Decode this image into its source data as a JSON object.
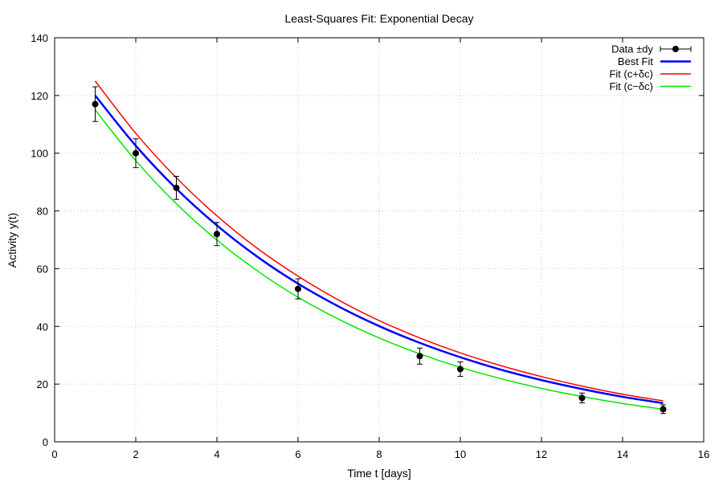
{
  "chart_data": {
    "type": "scatter",
    "title": "Least-Squares Fit: Exponential Decay",
    "xlabel": "Time t [days]",
    "ylabel": "Activity y(t)",
    "xlim": [
      0,
      16
    ],
    "ylim": [
      0,
      140
    ],
    "xticks": [
      0,
      2,
      4,
      6,
      8,
      10,
      12,
      14,
      16
    ],
    "yticks": [
      0,
      20,
      40,
      60,
      80,
      100,
      120,
      140
    ],
    "grid": true,
    "legend_position": "top-right",
    "data_points": {
      "name": "Data ±dy",
      "color": "#000000",
      "x": [
        1,
        2,
        3,
        4,
        6,
        9,
        10,
        13,
        15
      ],
      "y": [
        117,
        100,
        88,
        72,
        53,
        29.7,
        25.2,
        15.2,
        11.3
      ],
      "dy": [
        6,
        5,
        4,
        4,
        3.5,
        2.8,
        2.5,
        1.7,
        1.5
      ]
    },
    "series": [
      {
        "name": "Best Fit",
        "color": "#0000ff",
        "x": [
          1,
          2,
          3,
          4,
          5,
          6,
          7,
          8,
          9,
          10,
          11,
          12,
          13,
          14,
          15
        ],
        "y": [
          120.0,
          102.6,
          87.7,
          75.0,
          64.1,
          54.8,
          46.9,
          40.1,
          34.3,
          29.3,
          25.0,
          21.4,
          18.3,
          15.6,
          13.4
        ]
      },
      {
        "name": "Fit (c+δc)",
        "color": "#ff0000",
        "x": [
          1,
          2,
          3,
          4,
          5,
          6,
          7,
          8,
          9,
          10,
          11,
          12,
          13,
          14,
          15
        ],
        "y": [
          125.0,
          106.9,
          91.5,
          78.3,
          67.0,
          57.4,
          49.1,
          42.0,
          36.0,
          30.8,
          26.4,
          22.6,
          19.3,
          16.5,
          14.2
        ]
      },
      {
        "name": "Fit (c−δc)",
        "color": "#00e600",
        "x": [
          1,
          2,
          3,
          4,
          5,
          6,
          7,
          8,
          9,
          10,
          11,
          12,
          13,
          14,
          15
        ],
        "y": [
          115.0,
          97.4,
          82.5,
          69.9,
          59.2,
          50.1,
          42.5,
          36.0,
          30.5,
          25.8,
          21.9,
          18.5,
          15.7,
          13.3,
          11.3
        ]
      }
    ]
  }
}
